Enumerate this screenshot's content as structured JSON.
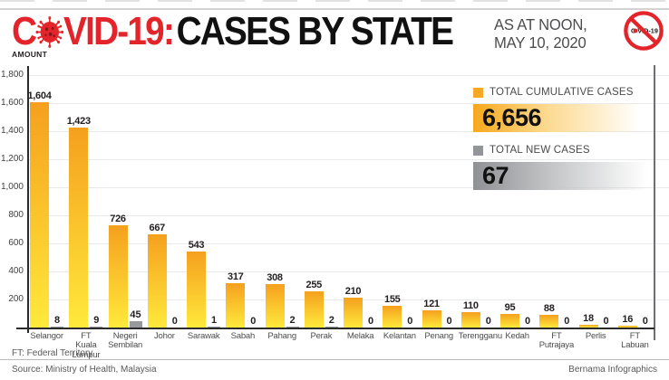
{
  "header": {
    "title_prefix": "C",
    "title_suffix": "VID-19:",
    "title_main": "CASES BY STATE",
    "date_line1": "AS AT NOON,",
    "date_line2": "MAY 10, 2020",
    "badge_part1": "C",
    "badge_part2": "VID-19"
  },
  "axis_label": "AMOUNT",
  "legend": {
    "cumulative_label": "TOTAL CUMULATIVE CASES",
    "cumulative_total": "6,656",
    "new_label": "TOTAL NEW CASES",
    "new_total": "67"
  },
  "chart_data": {
    "type": "bar",
    "title": "COVID-19: Cases by State — As at noon, May 10, 2020",
    "categories": [
      "Selangor",
      "FT\nKuala Lumpur",
      "Negeri\nSembilan",
      "Johor",
      "Sarawak",
      "Sabah",
      "Pahang",
      "Perak",
      "Melaka",
      "Kelantan",
      "Penang",
      "Terengganu",
      "Kedah",
      "FT\nPutrajaya",
      "Perlis",
      "FT\nLabuan"
    ],
    "series": [
      {
        "name": "Total cumulative cases",
        "values": [
          1604,
          1423,
          726,
          667,
          543,
          317,
          308,
          255,
          210,
          155,
          121,
          110,
          95,
          88,
          18,
          16
        ]
      },
      {
        "name": "Total new cases",
        "values": [
          8,
          9,
          45,
          0,
          1,
          0,
          2,
          2,
          0,
          0,
          0,
          0,
          0,
          0,
          0,
          0
        ]
      }
    ],
    "ylabel": "AMOUNT",
    "ylim": [
      0,
      1800
    ],
    "yticks": [
      200,
      400,
      600,
      800,
      1000,
      1200,
      1400,
      1600,
      1800
    ],
    "grid": true,
    "legend_position": "top-right"
  },
  "footer": {
    "note": "FT: Federal Territory",
    "source": "Source: Ministry of Health, Malaysia",
    "credit": "Bernama Infographics"
  },
  "colors": {
    "accent_red": "#E3242B",
    "bar_gradient_top": "#F5A01E",
    "bar_gradient_bottom": "#FFE93B",
    "new_bar_gray": "#97999C",
    "legend_orange": "#F7A81B",
    "legend_gray": "#8F9194",
    "text_dark": "#231F20",
    "text_gray": "#58595B"
  }
}
